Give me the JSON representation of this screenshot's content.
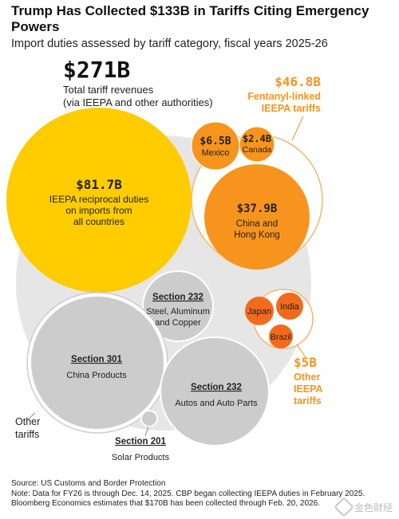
{
  "title": "Trump Has Collected $133B in Tariffs Citing Emergency Powers",
  "subtitle": "Import duties assessed by tariff category, fiscal years 2025-26",
  "chart_data": {
    "type": "bubble",
    "total": {
      "value_label": "$271B",
      "label_lines": [
        "Total tariff revenues",
        "(via IEEPA and other authorities)"
      ],
      "value": 271
    },
    "groups": [
      {
        "name_lines": [
          "$46.8B",
          "Fentanyl-linked",
          "IEEPA tariffs"
        ],
        "value": 46.8,
        "color": "#f7941d"
      },
      {
        "name_lines": [
          "$5B",
          "Other",
          "IEEPA",
          "tariffs"
        ],
        "value": 5,
        "color": "#f7941d"
      },
      {
        "name_lines": [
          "Other",
          "tariffs"
        ],
        "value": null,
        "color": "#cccccc"
      }
    ],
    "bubbles": [
      {
        "id": "ieepa-reciprocal",
        "value": 81.7,
        "value_label": "$81.7B",
        "label_lines": [
          "IEEPA reciprocal duties",
          "on imports from",
          "all countries"
        ],
        "color": "#ffcc00"
      },
      {
        "id": "mexico",
        "value": 6.5,
        "value_label": "$6.5B",
        "label_lines": [
          "Mexico"
        ],
        "color": "#f7941d"
      },
      {
        "id": "canada",
        "value": 2.4,
        "value_label": "$2.4B",
        "label_lines": [
          "Canada"
        ],
        "color": "#f7941d"
      },
      {
        "id": "china-hk",
        "value": 37.9,
        "value_label": "$37.9B",
        "label_lines": [
          "China and",
          "Hong Kong"
        ],
        "color": "#f7941d"
      },
      {
        "id": "japan",
        "value": null,
        "value_label": "",
        "label_lines": [
          "Japan"
        ],
        "color": "#f26b1d"
      },
      {
        "id": "india",
        "value": null,
        "value_label": "",
        "label_lines": [
          "India"
        ],
        "color": "#f26b1d"
      },
      {
        "id": "brazil",
        "value": null,
        "value_label": "",
        "label_lines": [
          "Brazil"
        ],
        "color": "#f26b1d"
      },
      {
        "id": "section-232-steel",
        "value": null,
        "value_label": "Section 232",
        "label_lines": [
          "Steel, Aluminum",
          "and Copper"
        ],
        "color": "#cccccc"
      },
      {
        "id": "section-301",
        "value": null,
        "value_label": "Section 301",
        "label_lines": [
          "China Products"
        ],
        "color": "#cccccc"
      },
      {
        "id": "section-232-autos",
        "value": null,
        "value_label": "Section 232",
        "label_lines": [
          "Autos and Auto Parts"
        ],
        "color": "#cccccc"
      },
      {
        "id": "section-201",
        "value": null,
        "value_label": "Section 201",
        "label_lines": [
          "Solar Products"
        ],
        "color": "#cccccc"
      }
    ]
  },
  "footer": {
    "source": "Source: US Customs and Border Protection",
    "note1": "Note: Data for FY26 is through Dec. 14, 2025. CBP began collecting IEEPA duties in February 2025.",
    "note2": "Bloomberg Economics estimates that $170B has been collected through Feb. 20, 2026."
  },
  "watermark": {
    "text": "金色财经"
  }
}
